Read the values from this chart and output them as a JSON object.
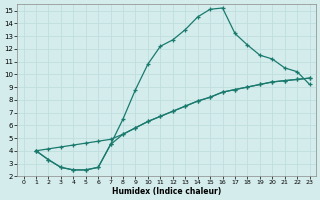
{
  "xlabel": "Humidex (Indice chaleur)",
  "bg_color": "#d4ecec",
  "grid_color": "#c0dede",
  "line_color": "#1a7a6e",
  "xlim": [
    -0.5,
    23.5
  ],
  "ylim": [
    2,
    15.5
  ],
  "xticks": [
    0,
    1,
    2,
    3,
    4,
    5,
    6,
    7,
    8,
    9,
    10,
    11,
    12,
    13,
    14,
    15,
    16,
    17,
    18,
    19,
    20,
    21,
    22,
    23
  ],
  "yticks": [
    2,
    3,
    4,
    5,
    6,
    7,
    8,
    9,
    10,
    11,
    12,
    13,
    14,
    15
  ],
  "line1_x": [
    1,
    2,
    3,
    4,
    5,
    6,
    7,
    8,
    9,
    10,
    11,
    12,
    13,
    14,
    15,
    16,
    17,
    18,
    19,
    20,
    21,
    22,
    23
  ],
  "line1_y": [
    4.0,
    3.3,
    2.7,
    2.5,
    2.5,
    2.7,
    4.5,
    6.5,
    8.8,
    10.8,
    12.2,
    12.7,
    13.5,
    14.5,
    15.1,
    15.2,
    13.2,
    12.3,
    11.5,
    11.2,
    10.5,
    10.2,
    9.2
  ],
  "line2_x": [
    1,
    2,
    3,
    4,
    5,
    6,
    7,
    8,
    9,
    10,
    11,
    12,
    13,
    14,
    15,
    16,
    17,
    18,
    19,
    20,
    21,
    22,
    23
  ],
  "line2_y": [
    4.0,
    4.15,
    4.3,
    4.45,
    4.6,
    4.75,
    4.9,
    5.3,
    5.8,
    6.3,
    6.7,
    7.1,
    7.5,
    7.9,
    8.2,
    8.6,
    8.8,
    9.0,
    9.2,
    9.4,
    9.5,
    9.6,
    9.7
  ],
  "line3_x": [
    1,
    2,
    3,
    4,
    5,
    6,
    7,
    8,
    9,
    10,
    11,
    12,
    13,
    14,
    15,
    16,
    17,
    18,
    19,
    20,
    21,
    22,
    23
  ],
  "line3_y": [
    4.0,
    3.3,
    2.7,
    2.5,
    2.5,
    2.7,
    4.5,
    5.3,
    5.8,
    6.3,
    6.7,
    7.1,
    7.5,
    7.9,
    8.2,
    8.6,
    8.8,
    9.0,
    9.2,
    9.4,
    9.5,
    9.6,
    9.7
  ]
}
